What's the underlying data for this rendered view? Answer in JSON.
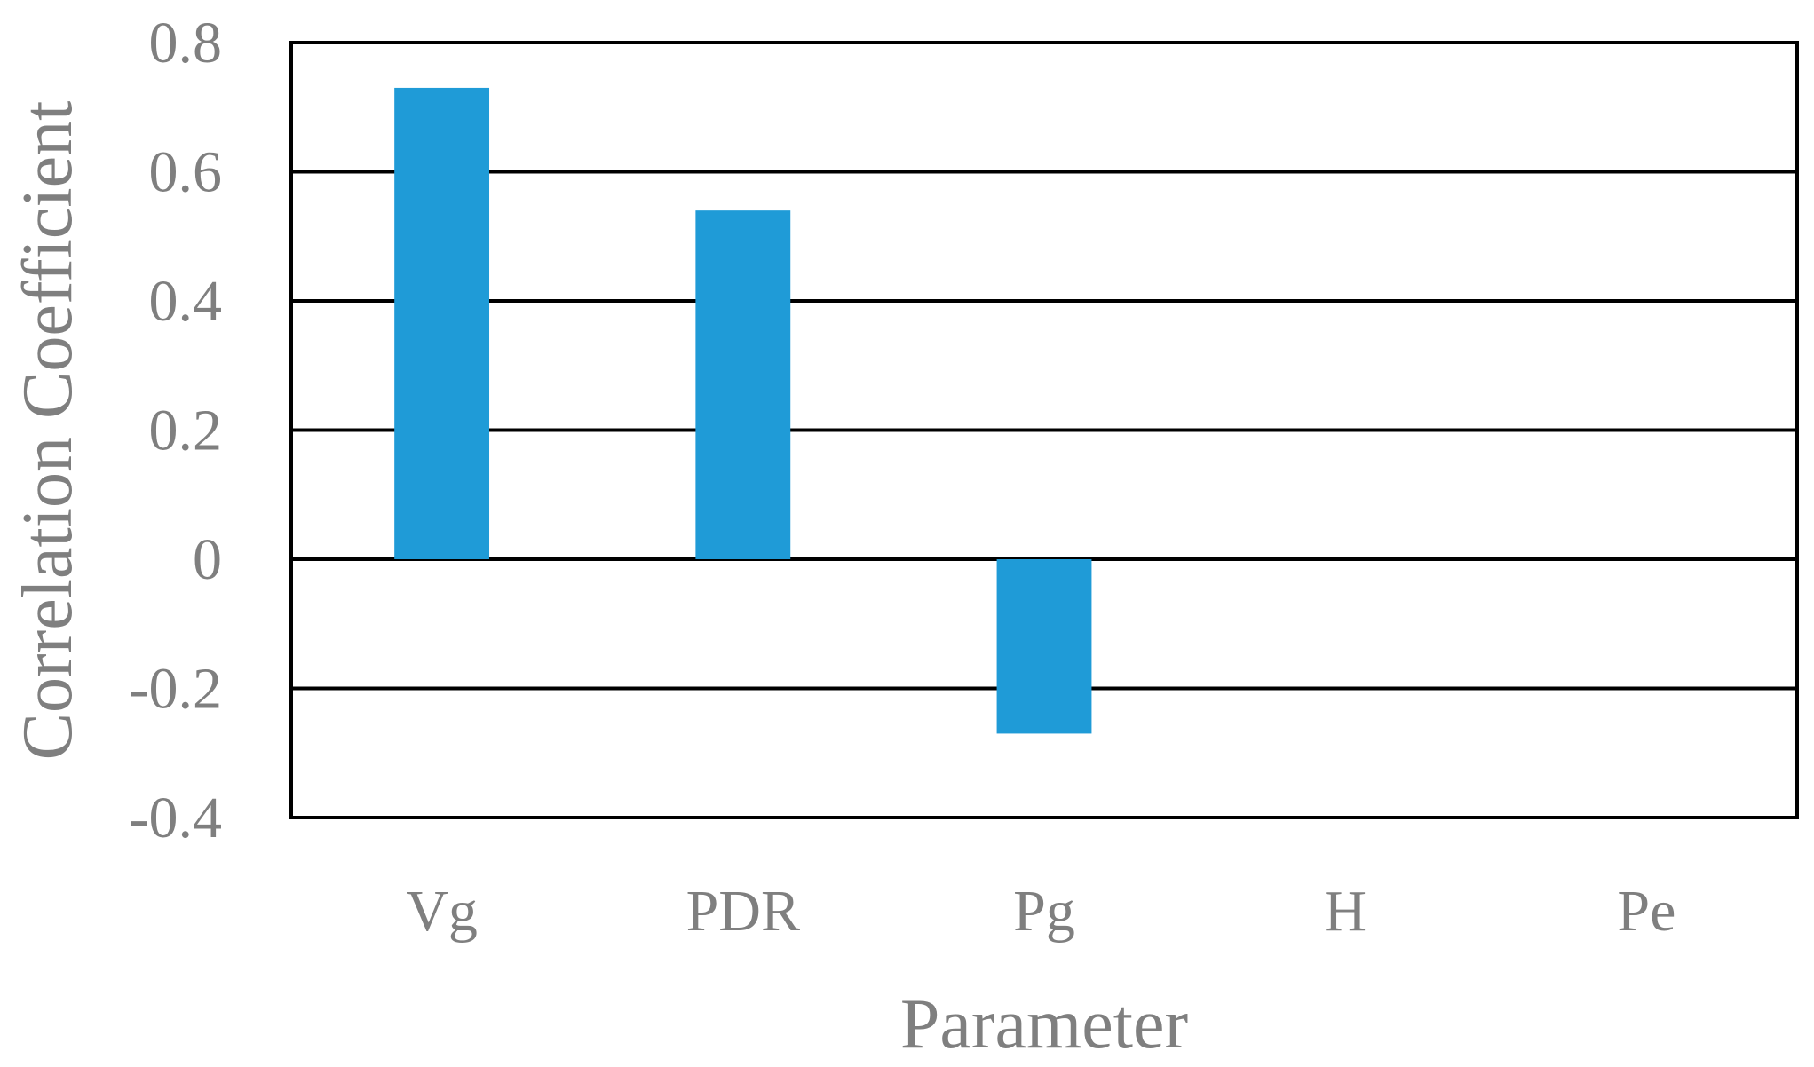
{
  "chart_data": {
    "type": "bar",
    "title": "",
    "xlabel": "Parameter",
    "ylabel": "Correlation Coefficient",
    "categories": [
      "Vg",
      "PDR",
      "Pg",
      "H",
      "Pe"
    ],
    "series": [
      {
        "values": [
          0.73,
          0.54,
          -0.27,
          0,
          0
        ]
      }
    ],
    "ylim": [
      -0.4,
      0.8
    ],
    "yticks": [
      0.8,
      0.6,
      0.4,
      0.2,
      0,
      -0.2,
      -0.4
    ],
    "ytick_labels": [
      "0.8",
      "0.6",
      "0.4",
      "0.2",
      "0",
      "-0.2",
      "-0.4"
    ],
    "grid": true,
    "legend": "none",
    "bar_color": "#1f9bd7",
    "grid_color": "#000000",
    "text_color": "#7f7f7f"
  }
}
